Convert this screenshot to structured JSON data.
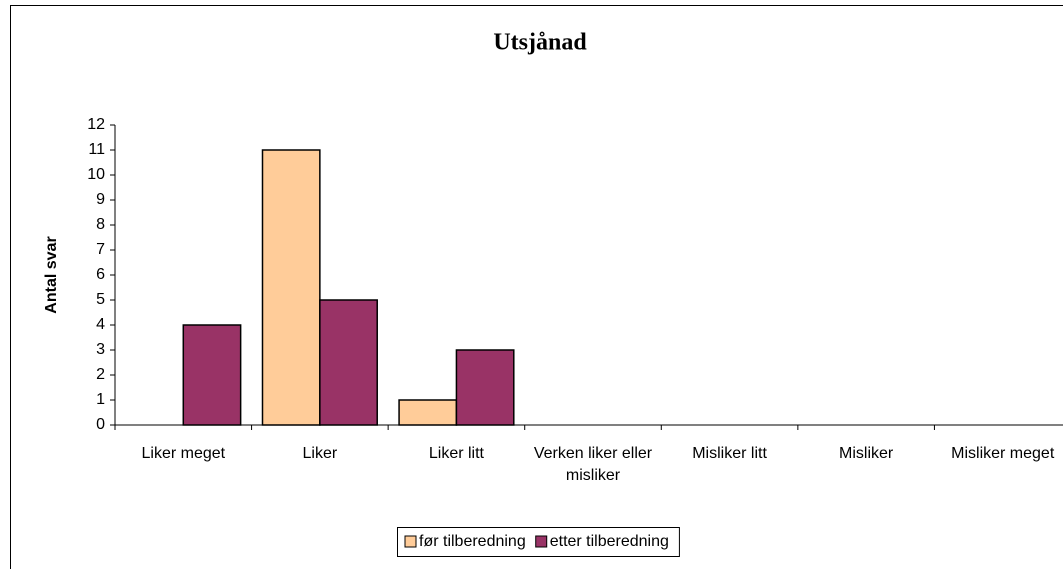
{
  "chart_data": {
    "type": "bar",
    "title": "Utsjånad",
    "y_label": "Antal svar",
    "categories": [
      "Liker meget",
      "Liker",
      "Liker litt",
      "Verken liker eller misliker",
      "Misliker litt",
      "Misliker",
      "Misliker meget"
    ],
    "series": [
      {
        "name": "før tilberedning",
        "color": "#FFCC99",
        "values": [
          0,
          11,
          1,
          0,
          0,
          0,
          0
        ]
      },
      {
        "name": "etter tilberedning",
        "color": "#993366",
        "values": [
          4,
          5,
          3,
          0,
          0,
          0,
          0
        ]
      }
    ],
    "ylim": [
      0,
      12
    ],
    "yticks": [
      0,
      1,
      2,
      3,
      4,
      5,
      6,
      7,
      8,
      9,
      10,
      11,
      12
    ],
    "legend": "bottom"
  }
}
